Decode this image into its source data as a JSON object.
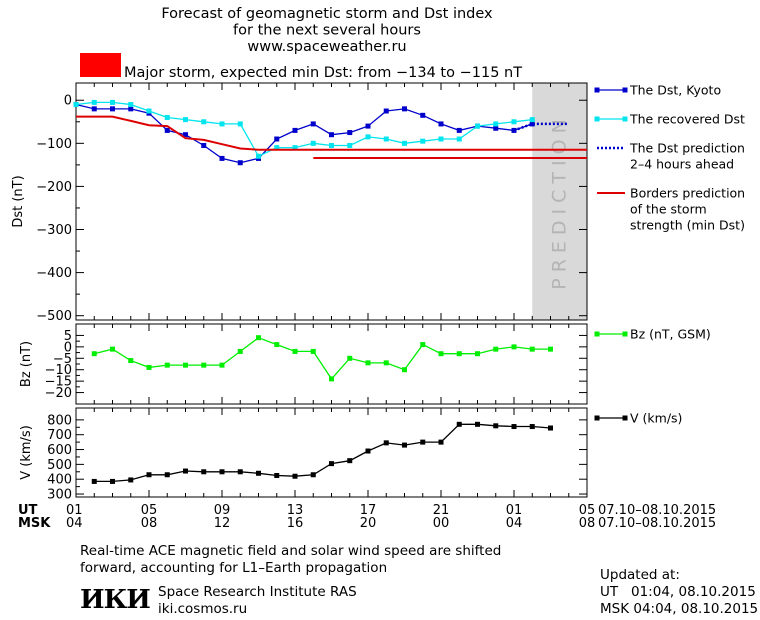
{
  "header": {
    "title_lines": [
      "Forecast of geomagnetic storm and Dst index",
      "for the next several hours",
      "www.spaceweather.ru"
    ],
    "storm_color": "#ff0000",
    "storm_text": "Major storm, expected min Dst: from −134 to −115 nT"
  },
  "prediction_label": "PREDICTION",
  "colors": {
    "dst_kyoto": "#0000cc",
    "dst_recovered": "#00e5ee",
    "dst_prediction": "#0000cc",
    "borders": "#dd0000",
    "bz": "#00ee00",
    "v": "#000000",
    "prediction_band": "#d9d9d9"
  },
  "time_axis": {
    "ut_label": "UT",
    "msk_label": "MSK",
    "ut_ticks": [
      "01",
      "05",
      "09",
      "13",
      "17",
      "21",
      "01",
      "05"
    ],
    "msk_ticks": [
      "04",
      "08",
      "12",
      "16",
      "20",
      "00",
      "04",
      "08"
    ],
    "date_range": "07.10–08.10.2015"
  },
  "chart_data": [
    {
      "type": "line",
      "ylabel": "Dst (nT)",
      "ylim": [
        -510,
        40
      ],
      "yticks": [
        0,
        -100,
        -200,
        -300,
        -400,
        -500
      ],
      "ytick_labels": [
        "0",
        "−100",
        "−200",
        "−300",
        "−400",
        "−500"
      ],
      "x_unit": "hours UT from 07.10 00:00",
      "series": [
        {
          "name": "The Dst, Kyoto",
          "x": [
            0,
            1,
            2,
            3,
            4,
            5,
            6,
            7,
            8,
            9,
            10,
            11,
            12,
            13,
            14,
            15,
            16,
            17,
            18,
            19,
            20,
            21,
            22,
            23,
            24,
            25
          ],
          "y": [
            -10,
            -20,
            -20,
            -20,
            -30,
            -70,
            -80,
            -105,
            -135,
            -145,
            -135,
            -90,
            -70,
            -55,
            -80,
            -75,
            -60,
            -25,
            -20,
            -35,
            -55,
            -70,
            -60,
            -65,
            -70,
            -55
          ]
        },
        {
          "name": "The recovered Dst",
          "x": [
            0,
            1,
            2,
            3,
            4,
            5,
            6,
            7,
            8,
            9,
            10,
            11,
            12,
            13,
            14,
            15,
            16,
            17,
            18,
            19,
            20,
            21,
            22,
            23,
            24,
            25
          ],
          "y": [
            -10,
            -5,
            -5,
            -10,
            -25,
            -40,
            -45,
            -50,
            -55,
            -55,
            -130,
            -110,
            -110,
            -100,
            -105,
            -105,
            -85,
            -90,
            -100,
            -95,
            -90,
            -90,
            -60,
            -55,
            -50,
            -45
          ]
        },
        {
          "name": "The Dst prediction\n2–4 hours ahead",
          "x": [
            24,
            25,
            26,
            27
          ],
          "y": [
            -70,
            -55,
            -55,
            -55
          ]
        },
        {
          "name": "Borders prediction\nof the storm\nstrength (min Dst)",
          "segments": [
            {
              "x": [
                0,
                2,
                3,
                4,
                5,
                6,
                7,
                8,
                9,
                10,
                11,
                12,
                13,
                14,
                15,
                16,
                17,
                18,
                19,
                20,
                21,
                22,
                23,
                24,
                25,
                26,
                27,
                28
              ],
              "y": [
                -38,
                -38,
                -48,
                -58,
                -60,
                -88,
                -92,
                -102,
                -112,
                -115,
                -115,
                -115,
                -115,
                -115,
                -115,
                -115,
                -115,
                -115,
                -115,
                -115,
                -115,
                -115,
                -115,
                -115,
                -115,
                -115,
                -115,
                -115
              ]
            },
            {
              "x": [
                13,
                28
              ],
              "y": [
                -134,
                -134
              ]
            }
          ]
        }
      ]
    },
    {
      "type": "line",
      "ylabel": "Bz (nT)",
      "ylim": [
        -25,
        10
      ],
      "yticks": [
        5,
        0,
        -5,
        -10,
        -15,
        -20
      ],
      "ytick_labels": [
        "5",
        "0",
        "−5",
        "−10",
        "−15",
        "−20"
      ],
      "series": [
        {
          "name": "Bz (nT, GSM)",
          "x": [
            1,
            2,
            3,
            4,
            5,
            6,
            7,
            8,
            9,
            10,
            11,
            12,
            13,
            14,
            15,
            16,
            17,
            18,
            19,
            20,
            21,
            22,
            23,
            24,
            25,
            26
          ],
          "y": [
            -3,
            -1,
            -6,
            -9,
            -8,
            -8,
            -8,
            -8,
            -2,
            4,
            1,
            -2,
            -2,
            -14,
            -5,
            -7,
            -7,
            -10,
            1,
            -3,
            -3,
            -3,
            -1,
            0,
            -1,
            -1
          ]
        }
      ]
    },
    {
      "type": "line",
      "ylabel": "V (km/s)",
      "ylim": [
        280,
        880
      ],
      "yticks": [
        800,
        700,
        600,
        500,
        400,
        300
      ],
      "ytick_labels": [
        "800",
        "700",
        "600",
        "500",
        "400",
        "300"
      ],
      "series": [
        {
          "name": "V (km/s)",
          "x": [
            1,
            2,
            3,
            4,
            5,
            6,
            7,
            8,
            9,
            10,
            11,
            12,
            13,
            14,
            15,
            16,
            17,
            18,
            19,
            20,
            21,
            22,
            23,
            24,
            25,
            26
          ],
          "y": [
            385,
            385,
            395,
            430,
            430,
            455,
            450,
            450,
            450,
            440,
            425,
            420,
            430,
            505,
            525,
            590,
            645,
            630,
            650,
            650,
            770,
            770,
            760,
            755,
            755,
            745
          ]
        }
      ]
    }
  ],
  "footer": {
    "note": "Real-time ACE magnetic field and solar wind speed are shifted\nforward, accounting for L1–Earth propagation",
    "logo_text": "ИКИ",
    "institute": "Space Research Institute RAS",
    "website": "iki.cosmos.ru",
    "updated_label": "Updated at:",
    "updated_ut": "UT   01:04, 08.10.2015",
    "updated_msk": "MSK 04:04, 08.10.2015"
  }
}
